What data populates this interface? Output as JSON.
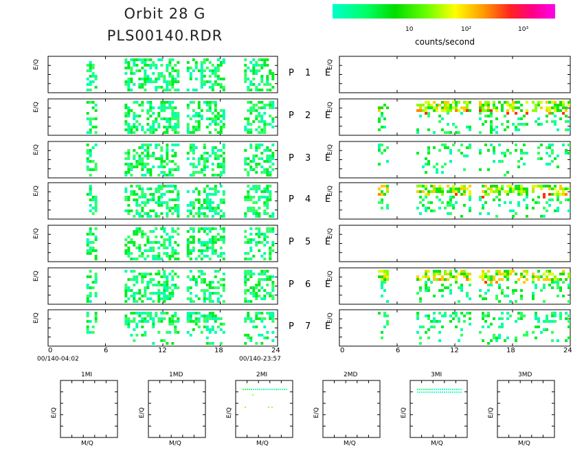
{
  "header": {
    "title": "Orbit 28 G",
    "subtitle": "PLS00140.RDR"
  },
  "colorbar": {
    "label": "counts/second",
    "ticks": [
      "10",
      "10²",
      "10³"
    ],
    "colors": [
      "#00ffcc",
      "#00ff66",
      "#00dd00",
      "#66ff00",
      "#ffff00",
      "#ff9900",
      "#ff2222",
      "#ff0088",
      "#ff00ee"
    ]
  },
  "panels": {
    "ylabel": "E/Q",
    "rows": [
      {
        "p": "P 1",
        "e": "E"
      },
      {
        "p": "P 2",
        "e": "E"
      },
      {
        "p": "P 3",
        "e": "E"
      },
      {
        "p": "P 4",
        "e": "E"
      },
      {
        "p": "P 5",
        "e": "E"
      },
      {
        "p": "P 6",
        "e": "E"
      },
      {
        "p": "P 7",
        "e": "E"
      }
    ],
    "xticks": [
      "0",
      "6",
      "12",
      "18",
      "24"
    ],
    "start_time": "00/140-04:02",
    "end_time": "00/140-23:57"
  },
  "mq_panels": {
    "xlabel": "M/Q",
    "ylabel": "E/Q",
    "titles": [
      "1MI",
      "1MD",
      "2MI",
      "2MD",
      "3MI",
      "3MD"
    ]
  },
  "chart_data": {
    "type": "heatmap",
    "x_range": [
      0,
      24
    ],
    "x_unit": "hours",
    "color_scale": "log",
    "left_column_activity_hours": [
      [
        4,
        5
      ],
      [
        8,
        13.5
      ],
      [
        14.5,
        18.5
      ],
      [
        20.5,
        23.5
      ]
    ],
    "right_column_activity_hours": [
      [
        4,
        5
      ],
      [
        8,
        13.5
      ],
      [
        14.5,
        19.5
      ],
      [
        20,
        24
      ]
    ]
  }
}
